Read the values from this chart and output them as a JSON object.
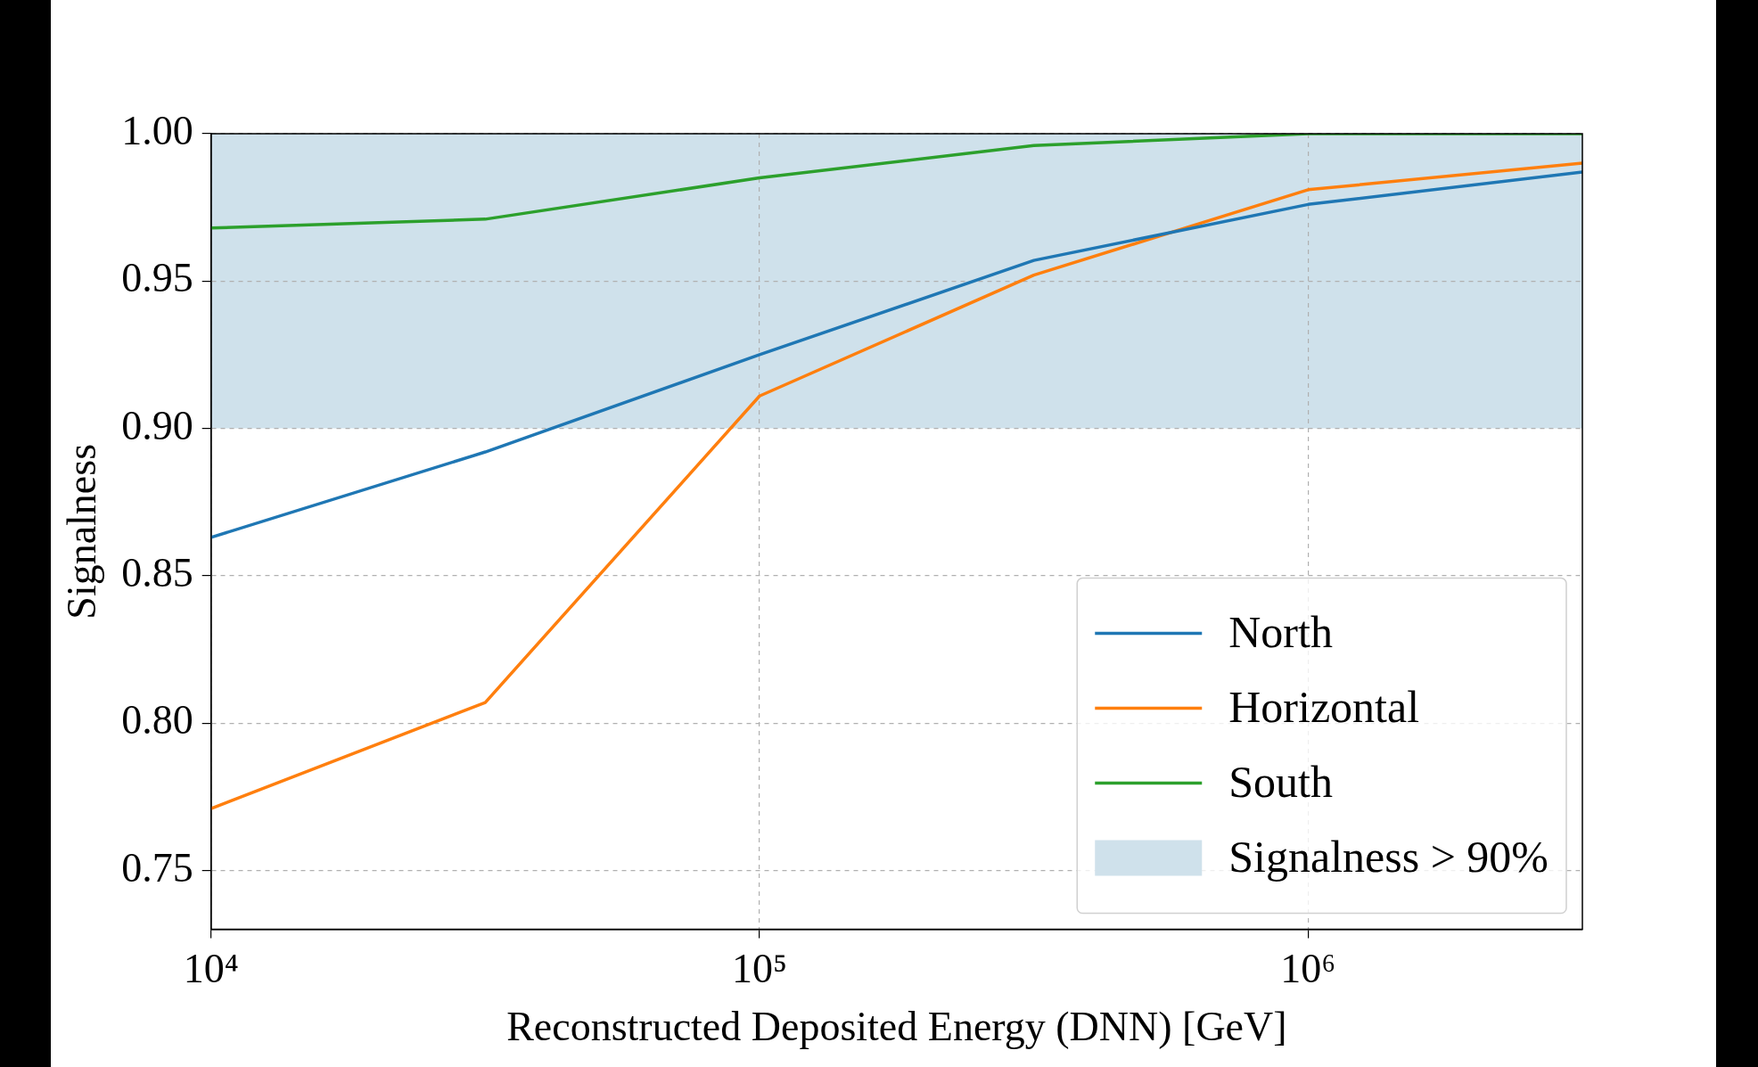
{
  "chart_data": {
    "type": "line",
    "xlabel": "Reconstructed Deposited Energy (DNN) [GeV]",
    "ylabel": "Signalness",
    "x": [
      10000,
      31623,
      100000,
      316228,
      1000000,
      3162278
    ],
    "series": [
      {
        "name": "North",
        "color": "#1f77b4",
        "values": [
          0.863,
          0.892,
          0.925,
          0.957,
          0.976,
          0.987
        ]
      },
      {
        "name": "Horizontal",
        "color": "#ff7f0e",
        "values": [
          0.771,
          0.807,
          0.911,
          0.952,
          0.981,
          0.99
        ]
      },
      {
        "name": "South",
        "color": "#2ca02c",
        "values": [
          0.968,
          0.971,
          0.985,
          0.996,
          1.0,
          1.0
        ]
      }
    ],
    "bands": [
      {
        "axis": "y",
        "from": 0.9,
        "to": 1.0,
        "label": "Signalness > 90%",
        "color": "#cfe1eb"
      }
    ],
    "log": "x",
    "xlim": [
      10000,
      3162278
    ],
    "xticks": [
      {
        "value": 10000,
        "label": "10⁴"
      },
      {
        "value": 100000,
        "label": "10⁵"
      },
      {
        "value": 1000000,
        "label": "10⁶"
      }
    ],
    "ylim": [
      0.73,
      1.0
    ],
    "yticks": [
      {
        "value": 0.75,
        "label": "0.75"
      },
      {
        "value": 0.8,
        "label": "0.80"
      },
      {
        "value": 0.85,
        "label": "0.85"
      },
      {
        "value": 0.9,
        "label": "0.90"
      },
      {
        "value": 0.95,
        "label": "0.95"
      },
      {
        "value": 1.0,
        "label": "1.00"
      }
    ],
    "grid": true,
    "legend": "bottom right",
    "marker": "none",
    "line_style": "solid"
  }
}
